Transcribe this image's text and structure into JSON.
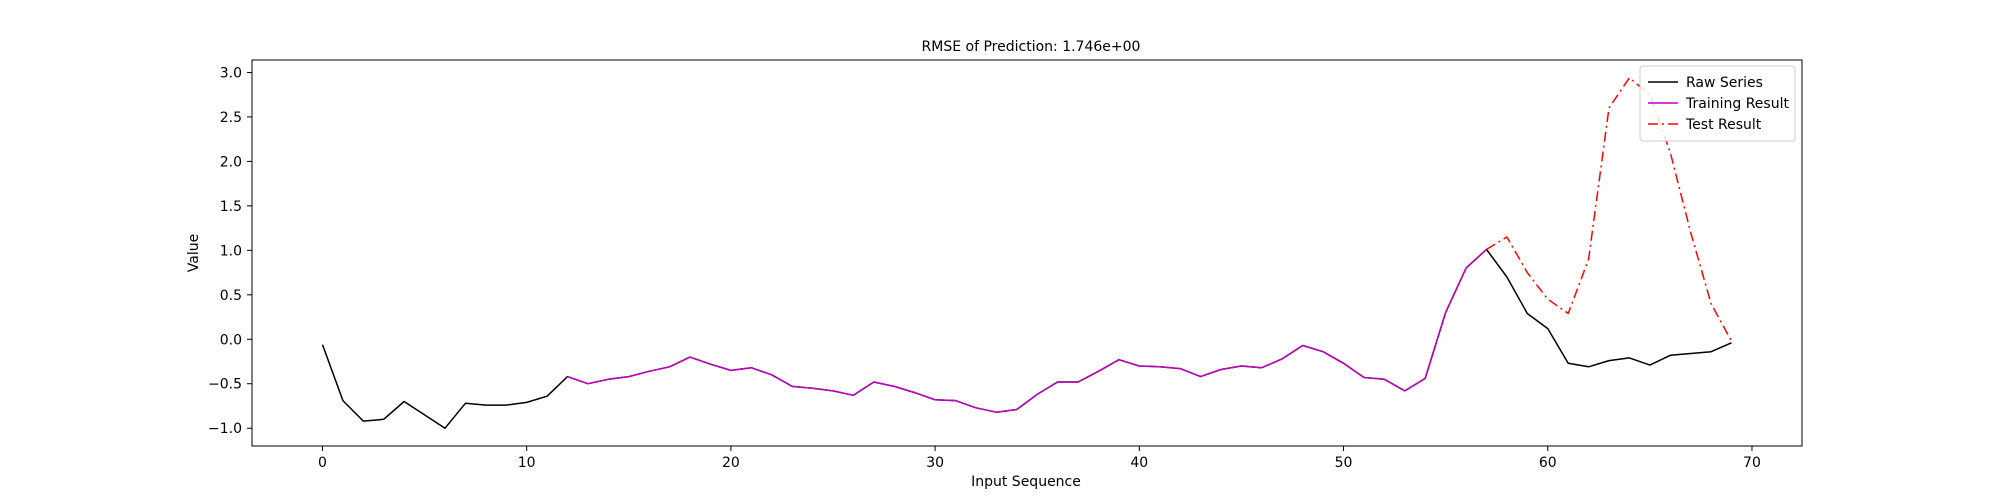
{
  "chart_data": {
    "type": "line",
    "title": "RMSE of Prediction: 1.746e+00",
    "xlabel": "Input Sequence",
    "ylabel": "Value",
    "xlim": [
      -3.45,
      72.45
    ],
    "ylim": [
      -1.2,
      3.14
    ],
    "xticks": [
      0,
      10,
      20,
      30,
      40,
      50,
      60,
      70
    ],
    "xtick_labels": [
      "0",
      "10",
      "20",
      "30",
      "40",
      "50",
      "60",
      "70"
    ],
    "yticks": [
      -1.0,
      -0.5,
      0.0,
      0.5,
      1.0,
      1.5,
      2.0,
      2.5,
      3.0
    ],
    "ytick_labels": [
      "−1.0",
      "−0.5",
      "0.0",
      "0.5",
      "1.0",
      "1.5",
      "2.0",
      "2.5",
      "3.0"
    ],
    "grid": false,
    "legend_position": "top-right",
    "series": [
      {
        "name": "Raw Series",
        "color": "#000000",
        "dash": "solid",
        "x": [
          0,
          1,
          2,
          3,
          4,
          5,
          6,
          7,
          8,
          9,
          10,
          11,
          12,
          13,
          14,
          15,
          16,
          17,
          18,
          19,
          20,
          21,
          22,
          23,
          24,
          25,
          26,
          27,
          28,
          29,
          30,
          31,
          32,
          33,
          34,
          35,
          36,
          37,
          38,
          39,
          40,
          41,
          42,
          43,
          44,
          45,
          46,
          47,
          48,
          49,
          50,
          51,
          52,
          53,
          54,
          55,
          56,
          57,
          58,
          59,
          60,
          61,
          62,
          63,
          64,
          65,
          66,
          67,
          68,
          69
        ],
        "y": [
          -0.06,
          -0.69,
          -0.92,
          -0.9,
          -0.7,
          -0.85,
          -1.0,
          -0.72,
          -0.74,
          -0.74,
          -0.71,
          -0.64,
          -0.42,
          -0.5,
          -0.45,
          -0.42,
          -0.36,
          -0.31,
          -0.2,
          -0.28,
          -0.35,
          -0.32,
          -0.4,
          -0.53,
          -0.55,
          -0.58,
          -0.63,
          -0.48,
          -0.53,
          -0.6,
          -0.68,
          -0.69,
          -0.77,
          -0.82,
          -0.79,
          -0.62,
          -0.48,
          -0.48,
          -0.36,
          -0.23,
          -0.3,
          -0.31,
          -0.33,
          -0.42,
          -0.34,
          -0.3,
          -0.32,
          -0.22,
          -0.07,
          -0.14,
          -0.27,
          -0.43,
          -0.45,
          -0.58,
          -0.44,
          0.3,
          0.8,
          1.01,
          0.7,
          0.29,
          0.12,
          -0.27,
          -0.31,
          -0.24,
          -0.21,
          -0.29,
          -0.18,
          -0.16,
          -0.14,
          -0.04
        ]
      },
      {
        "name": "Training Result",
        "color": "#bf00bf",
        "dash": "solid",
        "x": [
          12,
          13,
          14,
          15,
          16,
          17,
          18,
          19,
          20,
          21,
          22,
          23,
          24,
          25,
          26,
          27,
          28,
          29,
          30,
          31,
          32,
          33,
          34,
          35,
          36,
          37,
          38,
          39,
          40,
          41,
          42,
          43,
          44,
          45,
          46,
          47,
          48,
          49,
          50,
          51,
          52,
          53,
          54,
          55,
          56,
          57
        ],
        "y": [
          -0.42,
          -0.5,
          -0.45,
          -0.42,
          -0.36,
          -0.31,
          -0.2,
          -0.28,
          -0.35,
          -0.32,
          -0.4,
          -0.53,
          -0.55,
          -0.58,
          -0.63,
          -0.48,
          -0.53,
          -0.6,
          -0.68,
          -0.69,
          -0.77,
          -0.82,
          -0.79,
          -0.62,
          -0.48,
          -0.48,
          -0.36,
          -0.23,
          -0.3,
          -0.31,
          -0.33,
          -0.42,
          -0.34,
          -0.3,
          -0.32,
          -0.22,
          -0.07,
          -0.14,
          -0.27,
          -0.43,
          -0.45,
          -0.58,
          -0.44,
          0.3,
          0.8,
          1.01
        ]
      },
      {
        "name": "Test Result",
        "color": "#ff0000",
        "dash": "dashdot",
        "x": [
          57,
          58,
          59,
          60,
          61,
          62,
          63,
          64,
          65,
          66,
          67,
          68,
          69
        ],
        "y": [
          1.01,
          1.15,
          0.75,
          0.45,
          0.29,
          0.9,
          2.6,
          2.94,
          2.75,
          2.1,
          1.2,
          0.4,
          -0.02
        ]
      }
    ]
  }
}
